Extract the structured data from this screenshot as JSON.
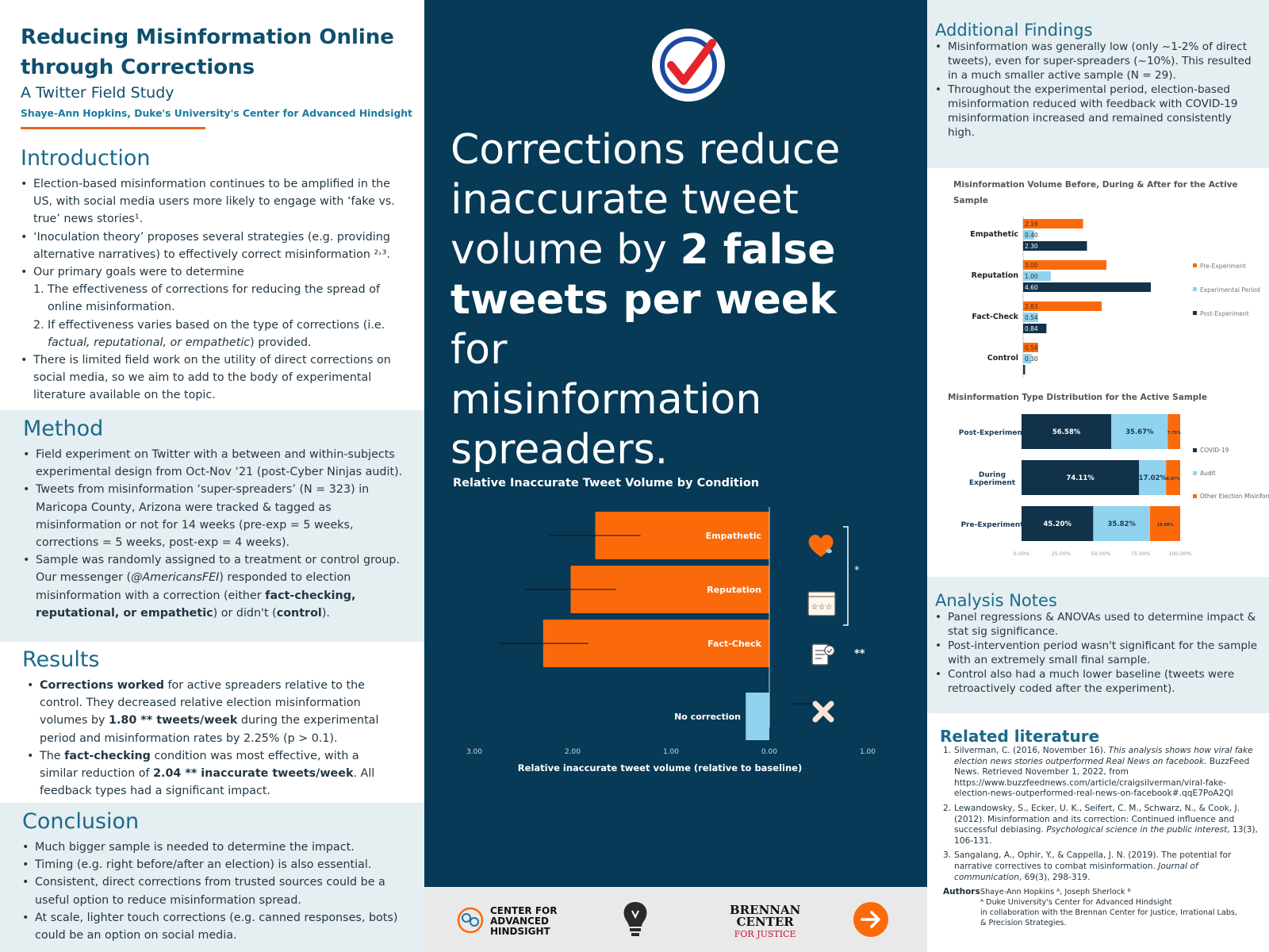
{
  "header": {
    "title_line1": "Reducing Misinformation Online",
    "title_line2": "through Corrections",
    "subtitle": "A Twitter Field Study",
    "byline": "Shaye-Ann Hopkins, Duke's University's Center for Advanced Hindsight"
  },
  "intro": {
    "heading": "Introduction",
    "b1": "Election-based misinformation continues to be amplified in the US, with social media users more likely to engage with ‘fake vs. true’ news stories¹.",
    "b2": "‘Inoculation theory’ proposes several strategies (e.g. providing alternative narratives) to effectively correct misinformation ²˒³.",
    "b3": "Our primary goals were to determine",
    "n1": "The effectiveness of corrections for reducing the spread of online misinformation.",
    "n2a": "If effectiveness varies based on the type of corrections (i.e. ",
    "n2b": "factual, reputational, or empathetic",
    "n2c": ") provided.",
    "b4": "There is limited field work on the utility of direct corrections on social media, so we aim to add to the body of experimental literature available on the topic."
  },
  "method": {
    "heading": "Method",
    "b1": "Field experiment on Twitter with a between and within-subjects experimental design from Oct-Nov ‘21 (post-Cyber Ninjas audit).",
    "b2": "Tweets from misinformation ‘super-spreaders’ (N = 323) in Maricopa County, Arizona were tracked & tagged as misinformation or not for 14 weeks (pre-exp = 5 weeks, corrections = 5 weeks, post-exp = 4 weeks).",
    "b3a": "Sample was randomly assigned to a treatment or control group. Our messenger (",
    "b3b": "@AmericansFEI",
    "b3c": ") responded to election misinformation with a correction (either ",
    "b3d": "fact-checking, reputational, or empathetic",
    "b3e": ") or didn't (",
    "b3f": "control",
    "b3g": ")."
  },
  "results": {
    "heading": "Results",
    "b1a": "Corrections worked",
    "b1b": " for active spreaders relative to the control. They decreased relative election misinformation volumes by ",
    "b1c": "1.80 ** tweets/week",
    "b1d": " during the experimental period and misinformation rates by 2.25% (p > 0.1).",
    "b2a": "The ",
    "b2b": "fact-checking",
    "b2c": " condition was most effective, with a similar reduction of ",
    "b2d": "2.04 ** inaccurate tweets/week",
    "b2e": ". All feedback types had a significant impact."
  },
  "conclusion": {
    "heading": "Conclusion",
    "b1": "Much bigger sample is needed to determine the impact.",
    "b2": "Timing (e.g. right before/after an election) is also essential.",
    "b3": " Consistent, direct corrections from trusted sources could be a useful option to reduce misinformation spread.",
    "b4": "At scale, lighter touch corrections (e.g. canned responses, bots) could be an option on social media."
  },
  "center": {
    "line1": "Corrections reduce",
    "line2": "inaccurate tweet",
    "line3a": "volume by ",
    "line3b": "2 false",
    "line4a": "tweets per week",
    "line4b": " for",
    "line5": "misinformation",
    "line6": "spreaders.",
    "footer1": "CENTER FOR",
    "footer2": "ADVANCED",
    "footer3": "HINDSIGHT",
    "brennan1": "BRENNAN",
    "brennan2": "CENTER",
    "brennan3": "FOR JUSTICE"
  },
  "additional": {
    "heading": "Additional Findings",
    "b1": "Misinformation was generally low (only ~1-2% of direct tweets), even for super-spreaders (~10%). This resulted in a much smaller active sample (N = 29).",
    "b2": "Throughout the experimental period, election-based misinformation reduced with feedback with COVID-19 misinformation increased and remained consistently high."
  },
  "analysis": {
    "heading": "Analysis Notes",
    "b1": "Panel regressions & ANOVAs used to determine impact & stat sig significance.",
    "b2": "Post-intervention period wasn't significant for the sample with an extremely small final sample.",
    "b3": "Control also had a much lower baseline (tweets were retroactively coded after the experiment)."
  },
  "literature": {
    "heading": "Related literature",
    "r1a": "Silverman, C. (2016, November 16). ",
    "r1b": "This analysis shows how viral fake election news stories outperformed Real News on facebook.",
    "r1c": " BuzzFeed News. Retrieved November 1, 2022, from https://www.buzzfeednews.com/article/craigsilverman/viral-fake-election-news-outperformed-real-news-on-facebook#.qqE7PoA2Ql",
    "r2a": "Lewandowsky, S., Ecker, U. K., Seifert, C. M., Schwarz, N., & Cook, J. (2012). Misinformation and its correction: Continued influence and successful debiasing. ",
    "r2b": "Psychological science in the public interest",
    "r2c": ", 13(3), 106-131.",
    "r3a": "Sangalang, A., Ophir, Y., & Cappella, J. N. (2019). The potential for narrative correctives to combat misinformation. ",
    "r3b": "Journal of communication",
    "r3c": ", 69(3), 298-319.",
    "authors_label": "Authors",
    "authors_names": "Shaye-Ann Hopkins ᴬ, Joseph Sherlock ᴮ",
    "aff1": "ᴬ Duke University's Center for Advanced Hindsight",
    "aff2": "in collaboration with the Brennan Center for Justice, Irrational Labs,",
    "aff3": "& Precision Strategies."
  },
  "colors": {
    "orange": "#fb6a0a",
    "navy": "#12324a",
    "light_blue": "#8fd3ee",
    "bg_dark": "#063a56",
    "teal_text": "#1a6a8a"
  },
  "icons": [
    "check-logo-icon",
    "heart-icon",
    "rating-stars-icon",
    "fact-check-icon",
    "x-mark-icon",
    "brain-icon",
    "lightbulb-head-icon",
    "arrow-right-icon"
  ],
  "chart_data": [
    {
      "type": "bar",
      "orientation": "horizontal",
      "title": "Relative Inaccurate Tweet Volume by Condition",
      "xlabel": "Relative inaccurate tweet volume (relative to baseline)",
      "categories": [
        "Empathetic",
        "Reputation",
        "Fact-Check",
        "No correction"
      ],
      "values": [
        -1.77,
        -2.02,
        -2.3,
        -0.24
      ],
      "xlim": [
        -3,
        1
      ],
      "xticks": [
        "3.00",
        "2.00",
        "1.00",
        "0.00",
        "1.00"
      ],
      "significance": [
        "*",
        "**"
      ]
    },
    {
      "type": "bar",
      "orientation": "horizontal",
      "title": "Misinformation Volume Before, During & After for the Active Sample",
      "categories": [
        "Empathetic",
        "Reputation",
        "Fact-Check",
        "Control"
      ],
      "series": [
        {
          "name": "Pre-Experiment",
          "values": [
            2.16,
            3.0,
            2.83,
            0.54
          ]
        },
        {
          "name": "Experimental Period",
          "values": [
            0.4,
            1.0,
            0.54,
            0.3
          ]
        },
        {
          "name": "Post-Experiment",
          "values": [
            2.3,
            4.6,
            0.84,
            0.07
          ]
        }
      ],
      "labels": [
        [
          "2.16",
          "0.40",
          "2.30"
        ],
        [
          "3.00",
          "1.00",
          "4.60"
        ],
        [
          "2.83",
          "0.54",
          "0.84"
        ],
        [
          "0.54",
          "0.30",
          "0.07"
        ]
      ]
    },
    {
      "type": "bar",
      "orientation": "horizontal",
      "stacked": true,
      "title": "Misinformation Type Distribution for the Active Sample",
      "categories": [
        "Post-Experiment",
        "During Experiment",
        "Pre-Experiment"
      ],
      "series": [
        {
          "name": "COVID-19",
          "values": [
            56.58,
            74.11,
            45.2
          ]
        },
        {
          "name": "Audit",
          "values": [
            35.67,
            17.02,
            35.82
          ]
        },
        {
          "name": "Other Election Misinformation",
          "values": [
            7.75,
            8.87,
            18.98
          ]
        }
      ],
      "labels": [
        [
          "56.58%",
          "35.67%",
          "7.75%"
        ],
        [
          "74.11%",
          "17.02%",
          "8.87%"
        ],
        [
          "45.20%",
          "35.82%",
          "18.98%"
        ]
      ],
      "xticks": [
        "0.00%",
        "25.00%",
        "50.00%",
        "75.00%",
        "100.00%"
      ]
    }
  ]
}
